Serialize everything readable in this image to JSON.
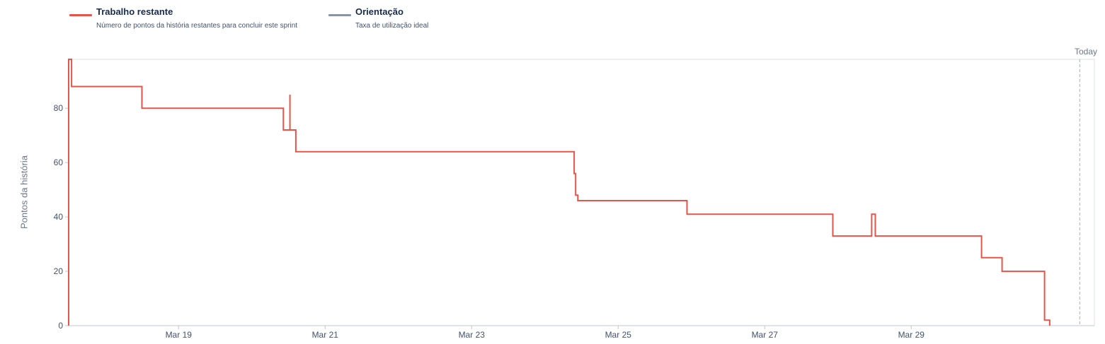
{
  "legend": {
    "remaining": {
      "title": "Trabalho restante",
      "description": "Número de pontos da história restantes para concluir este sprint",
      "color": "#e5564a"
    },
    "guideline": {
      "title": "Orientação",
      "description": "Taxa de utilização ideal",
      "color": "#8993a4"
    }
  },
  "today_label": "Today",
  "chart_data": {
    "type": "line",
    "step": true,
    "ylabel": "Pontos da história",
    "xlabel": "",
    "ylim": [
      0,
      98
    ],
    "yticks": [
      0,
      20,
      40,
      60,
      80
    ],
    "xlim": [
      17.5,
      31.5
    ],
    "xticks": [
      {
        "label": "Mar 19",
        "x": 19
      },
      {
        "label": "Mar 21",
        "x": 21
      },
      {
        "label": "Mar 23",
        "x": 23
      },
      {
        "label": "Mar 25",
        "x": 25
      },
      {
        "label": "Mar 27",
        "x": 27
      },
      {
        "label": "Mar 29",
        "x": 29
      }
    ],
    "today_x": 31.3,
    "grid": false,
    "series": [
      {
        "name": "Trabalho restante",
        "color": "#e5564a",
        "x": [
          17.5,
          17.5,
          17.54,
          17.54,
          18.5,
          18.5,
          20.43,
          20.43,
          20.52,
          20.52,
          20.52,
          20.52,
          20.6,
          20.6,
          24.4,
          24.4,
          24.42,
          24.42,
          24.45,
          24.45,
          25.94,
          25.94,
          27.93,
          27.93,
          28.46,
          28.46,
          28.51,
          28.51,
          29.96,
          29.96,
          30.24,
          30.24,
          30.82,
          30.82,
          30.89,
          30.89
        ],
        "y": [
          0,
          98,
          98,
          88,
          88,
          80,
          80,
          72,
          72,
          85,
          85,
          72,
          72,
          64,
          64,
          56,
          56,
          48,
          48,
          46,
          46,
          41,
          41,
          33,
          33,
          41,
          41,
          33,
          33,
          25,
          25,
          20,
          20,
          2,
          2,
          0
        ]
      },
      {
        "name": "Orientação",
        "color": "#8993a4",
        "x": [],
        "y": []
      }
    ]
  }
}
